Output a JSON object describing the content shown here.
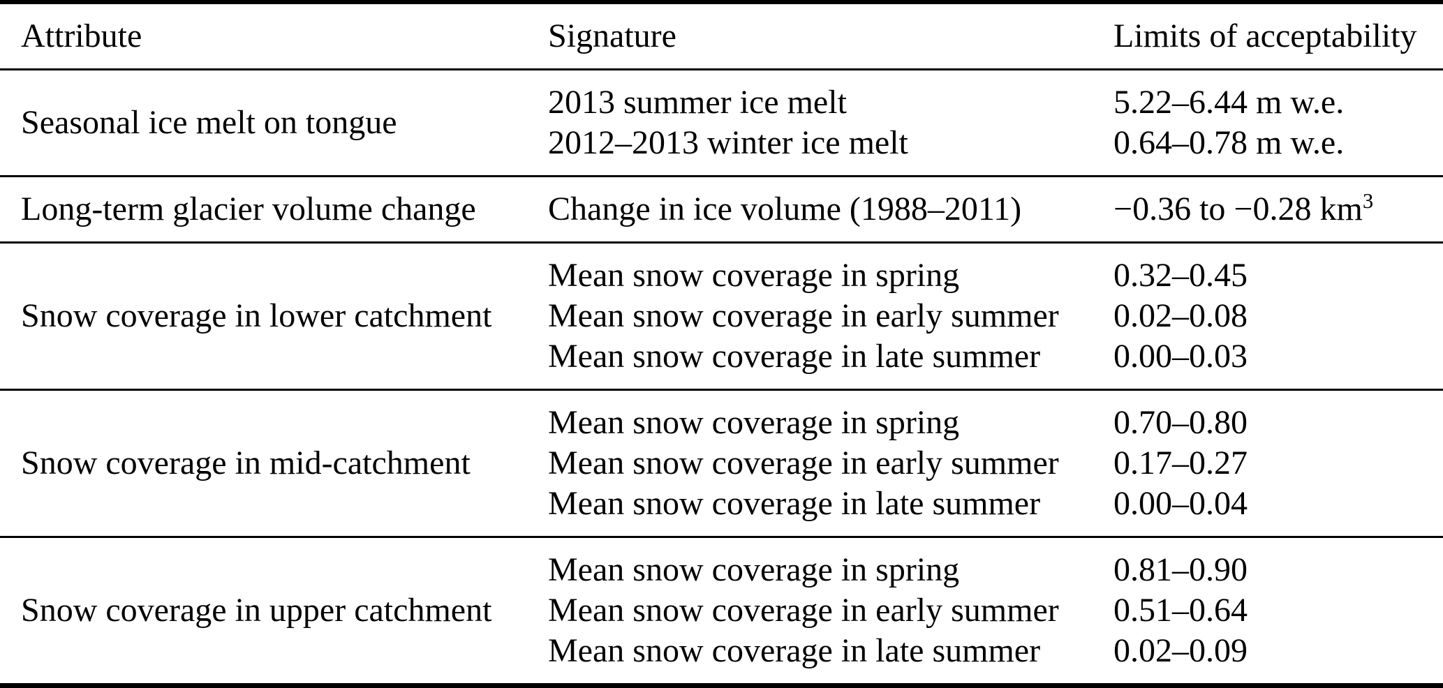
{
  "colors": {
    "background": "#ffffff",
    "text": "#000000",
    "rule": "#000000"
  },
  "table": {
    "columns": [
      "Attribute",
      "Signature",
      "Limits of acceptability"
    ],
    "rows": [
      {
        "attribute": "Seasonal ice melt on tongue",
        "entries": [
          {
            "signature": "2013 summer ice melt",
            "limits": "5.22–6.44 m w.e."
          },
          {
            "signature": "2012–2013 winter ice melt",
            "limits": "0.64–0.78 m w.e."
          }
        ]
      },
      {
        "attribute": "Long-term glacier volume change",
        "entries": [
          {
            "signature": "Change in ice volume (1988–2011)",
            "limits": "−0.36 to −0.28 km",
            "limits_superscript": "3"
          }
        ]
      },
      {
        "attribute": "Snow coverage in lower catchment",
        "entries": [
          {
            "signature": "Mean snow coverage in spring",
            "limits": "0.32–0.45"
          },
          {
            "signature": "Mean snow coverage in early summer",
            "limits": "0.02–0.08"
          },
          {
            "signature": "Mean snow coverage in late summer",
            "limits": "0.00–0.03"
          }
        ]
      },
      {
        "attribute": "Snow coverage in mid-catchment",
        "entries": [
          {
            "signature": "Mean snow coverage in spring",
            "limits": "0.70–0.80"
          },
          {
            "signature": "Mean snow coverage in early summer",
            "limits": "0.17–0.27"
          },
          {
            "signature": "Mean snow coverage in late summer",
            "limits": "0.00–0.04"
          }
        ]
      },
      {
        "attribute": "Snow coverage in upper catchment",
        "entries": [
          {
            "signature": "Mean snow coverage in spring",
            "limits": "0.81–0.90"
          },
          {
            "signature": "Mean snow coverage in early summer",
            "limits": "0.51–0.64"
          },
          {
            "signature": "Mean snow coverage in late summer",
            "limits": "0.02–0.09"
          }
        ]
      }
    ]
  }
}
